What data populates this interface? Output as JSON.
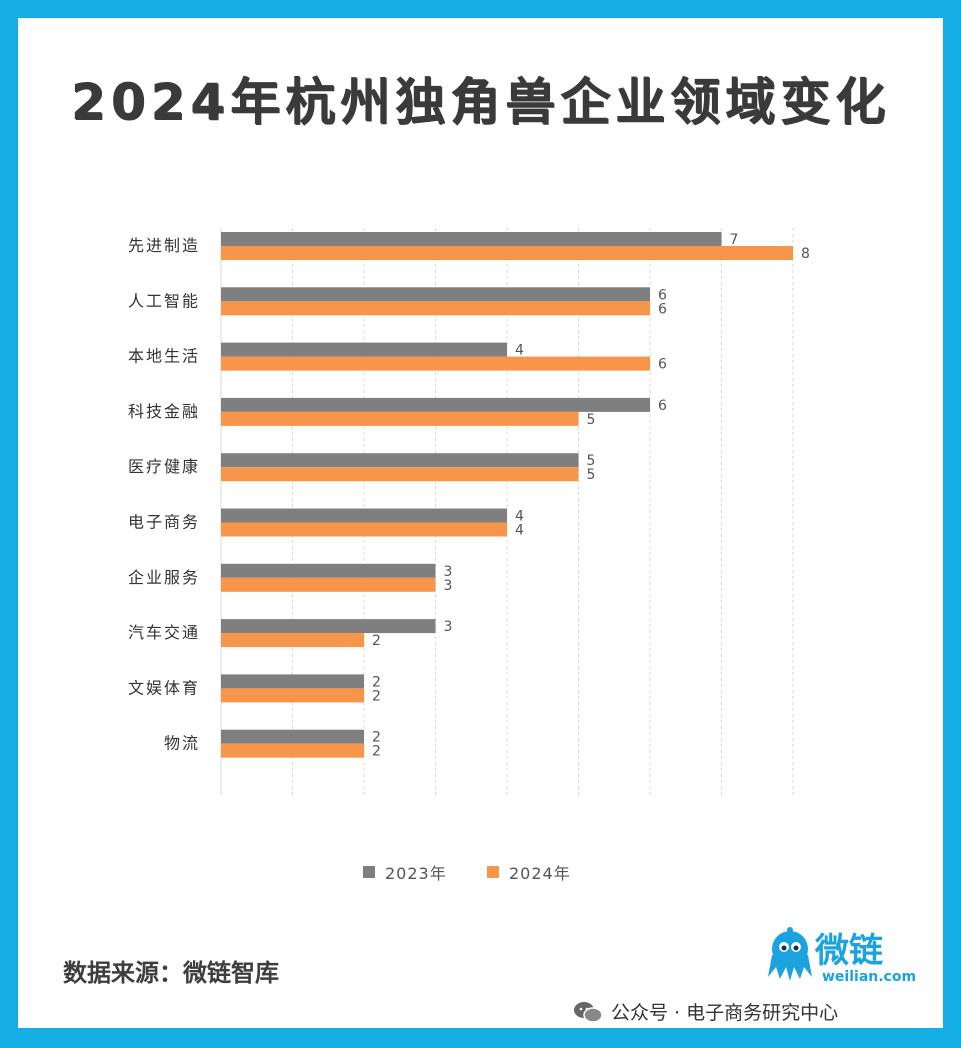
{
  "title": "2024年杭州独角兽企业领域变化",
  "chart_data": {
    "type": "bar",
    "orientation": "horizontal",
    "categories": [
      "先进制造",
      "人工智能",
      "本地生活",
      "科技金融",
      "医疗健康",
      "电子商务",
      "企业服务",
      "汽车交通",
      "文娱体育",
      "物流"
    ],
    "series": [
      {
        "name": "2023年",
        "color": "#7f7f7f",
        "values": [
          7,
          6,
          4,
          6,
          5,
          4,
          3,
          3,
          2,
          2
        ]
      },
      {
        "name": "2024年",
        "color": "#f7964b",
        "values": [
          8,
          6,
          6,
          5,
          5,
          4,
          3,
          2,
          2,
          2
        ]
      }
    ],
    "xlim": [
      0,
      8
    ],
    "grid": "vertical dashed",
    "legend_position": "bottom"
  },
  "source": "数据来源：微链智库",
  "logo": {
    "name": "微链",
    "url": "weilian.com"
  },
  "watermark": "公众号 · 电子商务研究中心",
  "colors": {
    "frame": "#14aee4"
  }
}
